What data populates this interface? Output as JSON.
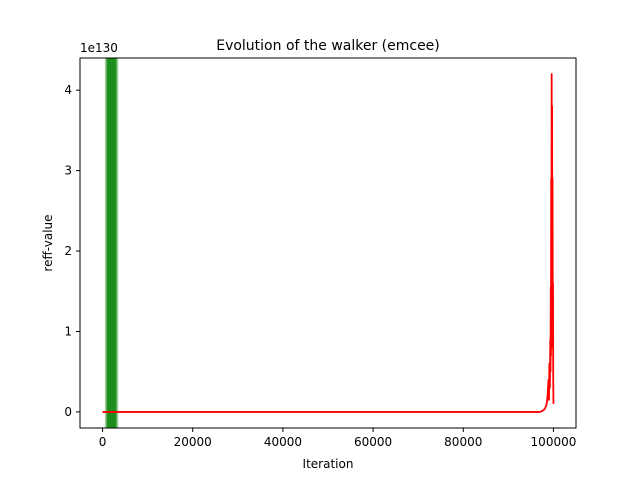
{
  "chart_data": {
    "type": "line",
    "title": "Evolution of the walker (emcee)",
    "xlabel": "Iteration",
    "ylabel": "reff-value",
    "y_scale_label": "1e130",
    "xlim": [
      -5000,
      105000
    ],
    "ylim": [
      -0.2,
      4.4
    ],
    "x_ticks": [
      0,
      20000,
      40000,
      60000,
      80000,
      100000
    ],
    "x_tick_labels": [
      "0",
      "20000",
      "40000",
      "60000",
      "80000",
      "100000"
    ],
    "y_ticks": [
      0,
      1,
      2,
      3,
      4
    ],
    "y_tick_labels": [
      "0",
      "1",
      "2",
      "3",
      "4"
    ],
    "grid": false,
    "series": [
      {
        "color": "#ff0000",
        "x": [
          0,
          97000,
          97800,
          98200,
          98500,
          98700,
          98900,
          99000,
          99100,
          99200,
          99300,
          99350,
          99400,
          99450,
          99500,
          99550,
          99600,
          99650,
          99700,
          99750,
          99800,
          99850,
          99900,
          99950,
          100000
        ],
        "y": [
          0,
          0,
          0.02,
          0.05,
          0.1,
          0.2,
          0.4,
          0.15,
          0.6,
          0.3,
          0.9,
          0.5,
          1.55,
          0.7,
          2.9,
          1.2,
          4.2,
          2.0,
          3.8,
          1.5,
          2.9,
          0.8,
          1.6,
          0.4,
          0.1
        ]
      }
    ],
    "burn_in_band": {
      "color": "#008000",
      "lines_x": [
        700,
        900,
        1100,
        1300,
        1500,
        1700,
        1900,
        2100,
        2300,
        2500,
        2700,
        2900,
        3100,
        3300
      ]
    }
  }
}
